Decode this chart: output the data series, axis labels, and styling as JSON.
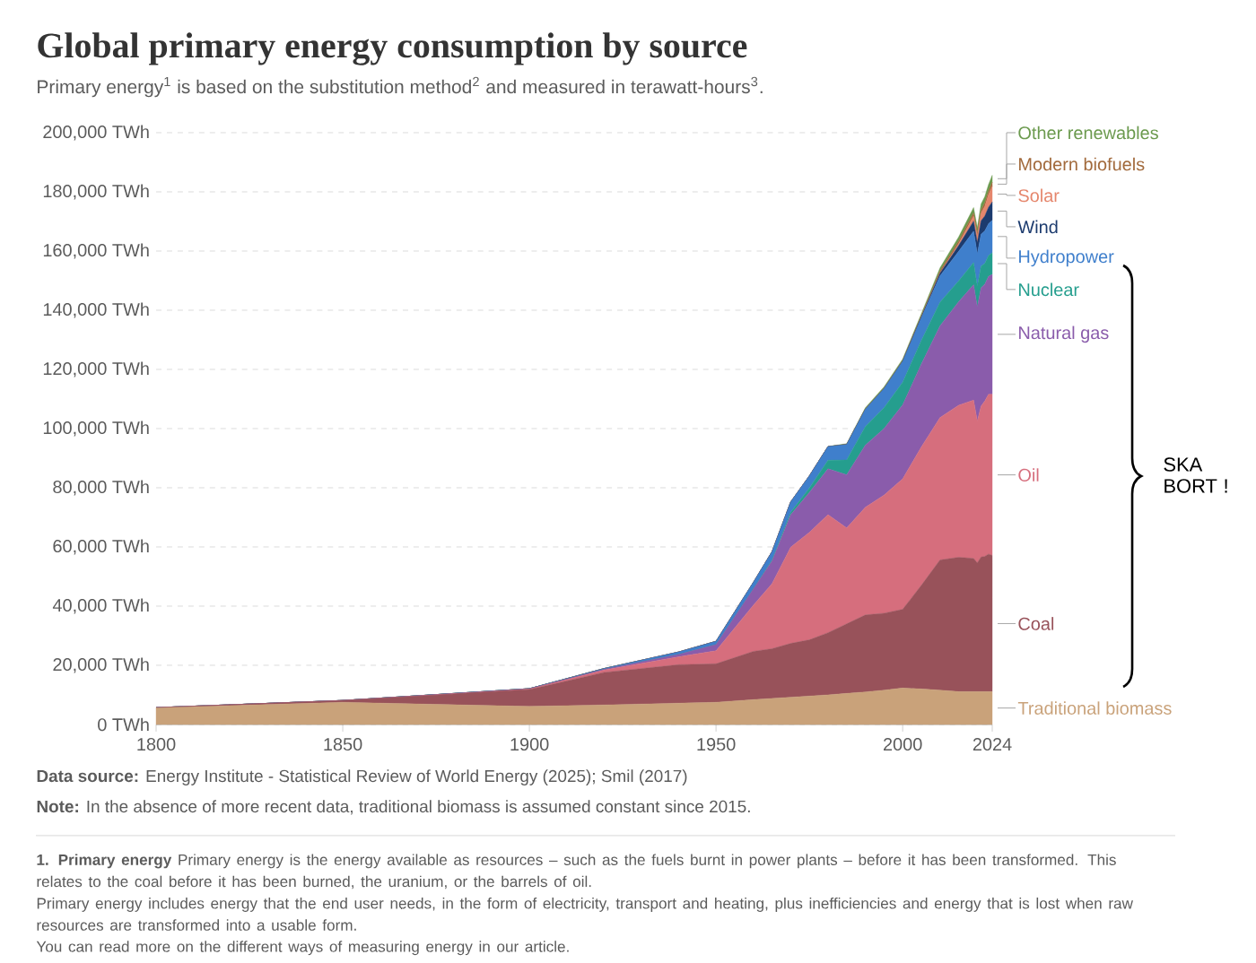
{
  "chart_data": {
    "type": "area",
    "stacked": true,
    "title": "Global primary energy consumption by source",
    "subtitle": "Primary energy$^{1}$ is based on the substitution method$^{2}$ and measured in terawatt-hours$^{3}$.",
    "x": [
      1800,
      1850,
      1900,
      1920,
      1940,
      1950,
      1960,
      1965,
      1970,
      1975,
      1980,
      1985,
      1990,
      1995,
      2000,
      2005,
      2010,
      2015,
      2019,
      2020,
      2021,
      2022,
      2023,
      2024
    ],
    "xlim": [
      1800,
      2024
    ],
    "xticks": [
      1800,
      1850,
      1900,
      1950,
      2000,
      2024
    ],
    "ylim": [
      0,
      200000
    ],
    "yticks": [
      {
        "value": 0,
        "label": "0 TWh"
      },
      {
        "value": 20000,
        "label": "20,000 TWh"
      },
      {
        "value": 40000,
        "label": "40,000 TWh"
      },
      {
        "value": 60000,
        "label": "60,000 TWh"
      },
      {
        "value": 80000,
        "label": "80,000 TWh"
      },
      {
        "value": 100000,
        "label": "100,000 TWh"
      },
      {
        "value": 120000,
        "label": "120,000 TWh"
      },
      {
        "value": 140000,
        "label": "140,000 TWh"
      },
      {
        "value": 160000,
        "label": "160,000 TWh"
      },
      {
        "value": 180000,
        "label": "180,000 TWh"
      },
      {
        "value": 200000,
        "label": "200,000 TWh"
      }
    ],
    "grid": "y",
    "legend": "right",
    "series": [
      {
        "name": "Traditional biomass",
        "color": "#c9a27a",
        "values": [
          5600,
          7500,
          6100,
          6600,
          7200,
          7500,
          8400,
          8800,
          9200,
          9600,
          10000,
          10500,
          11000,
          11600,
          12300,
          12000,
          11600,
          11100,
          11100,
          11100,
          11100,
          11100,
          11100,
          11100
        ]
      },
      {
        "name": "Coal",
        "color": "#98525a",
        "values": [
          100,
          600,
          5700,
          11000,
          13000,
          13000,
          16300,
          16800,
          18200,
          19000,
          21000,
          23500,
          26000,
          26000,
          26600,
          35000,
          44000,
          45400,
          45000,
          43500,
          45500,
          45700,
          46500,
          46000
        ]
      },
      {
        "name": "Oil",
        "color": "#d66e7d",
        "values": [
          0,
          0,
          200,
          800,
          2700,
          4400,
          15600,
          22000,
          32500,
          36300,
          39900,
          32400,
          36400,
          39900,
          44100,
          46800,
          48100,
          51400,
          53500,
          48000,
          51000,
          52500,
          54000,
          54500
        ]
      },
      {
        "name": "Natural gas",
        "color": "#8a5cab",
        "values": [
          0,
          0,
          100,
          300,
          800,
          2100,
          5500,
          7700,
          11000,
          13500,
          15500,
          18000,
          21000,
          22500,
          25000,
          28000,
          31000,
          35000,
          39000,
          38500,
          40000,
          39500,
          39800,
          40500
        ]
      },
      {
        "name": "Nuclear",
        "color": "#259e8e",
        "values": [
          0,
          0,
          0,
          0,
          0,
          0,
          0,
          300,
          800,
          1500,
          2900,
          5000,
          6300,
          7000,
          7700,
          8000,
          8000,
          7000,
          7500,
          7100,
          7300,
          7000,
          7100,
          7300
        ]
      },
      {
        "name": "Hydropower",
        "color": "#3f7fcc",
        "values": [
          0,
          0,
          0,
          200,
          800,
          1100,
          2200,
          2800,
          3500,
          4100,
          4600,
          5200,
          5800,
          6500,
          7000,
          7700,
          8900,
          10000,
          10600,
          10900,
          10800,
          11000,
          10700,
          11000
        ]
      },
      {
        "name": "Wind",
        "color": "#1c3b6e",
        "values": [
          0,
          0,
          0,
          0,
          0,
          0,
          0,
          0,
          0,
          0,
          0,
          0,
          0,
          0,
          100,
          300,
          900,
          2000,
          3400,
          3800,
          4500,
          5000,
          5600,
          6200
        ]
      },
      {
        "name": "Solar",
        "color": "#e5866c",
        "values": [
          0,
          0,
          0,
          0,
          0,
          0,
          0,
          0,
          0,
          0,
          0,
          0,
          0,
          0,
          0,
          0,
          100,
          600,
          1700,
          2100,
          2600,
          3300,
          4200,
          5300
        ]
      },
      {
        "name": "Modern biofuels",
        "color": "#a26a3c",
        "values": [
          0,
          0,
          0,
          0,
          0,
          0,
          0,
          0,
          0,
          0,
          0,
          0,
          100,
          100,
          100,
          300,
          700,
          900,
          1100,
          1050,
          1100,
          1200,
          1300,
          1400
        ]
      },
      {
        "name": "Other renewables",
        "color": "#6b9a4e",
        "values": [
          0,
          0,
          0,
          0,
          0,
          0,
          0,
          0,
          0,
          0,
          100,
          300,
          400,
          500,
          600,
          700,
          1000,
          1400,
          1800,
          1900,
          2000,
          2100,
          2200,
          2300
        ]
      }
    ],
    "annotations": [
      "**Data source:** Energy Institute - Statistical Review of World Energy (2025); Smil (2017)",
      "**Note:** In the absence of more recent data, traditional biomass is assumed constant since 2015.",
      "**1. Primary energy** Primary energy is the energy available as resources – such as the fuels burnt in power plants – before it has been transformed. This relates to the coal before it has been burned, the uranium, or the barrels of oil.",
      "Primary energy includes energy that the end user needs, in the form of electricity, transport and heating, plus inefficiencies and energy that is lost when raw resources are transformed into a usable form.",
      "You can read more on the different ways of measuring energy in our article.",
      "SKA BORT !"
    ]
  }
}
